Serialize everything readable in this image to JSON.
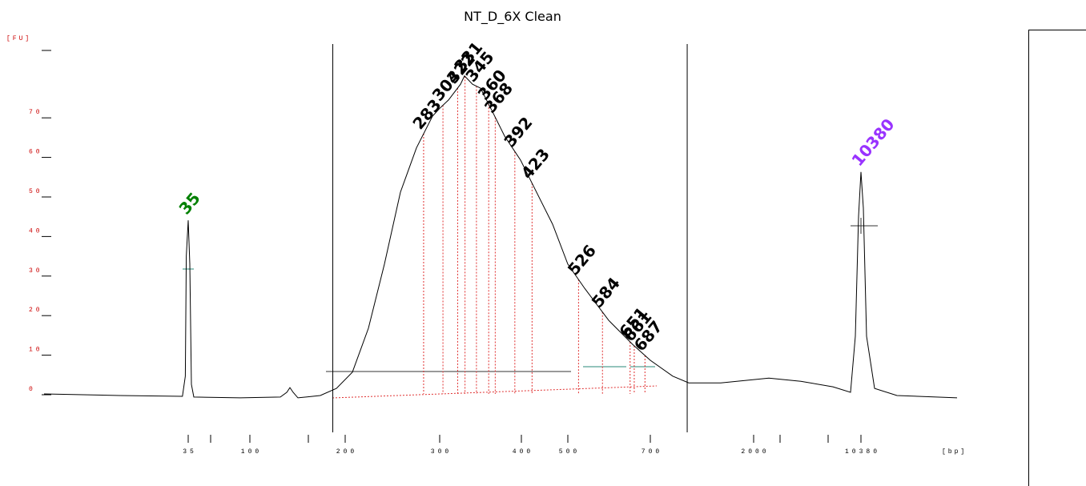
{
  "chart_data": {
    "type": "line",
    "title": "NT_D_6X Clean",
    "x_label": "[bp]",
    "y_label": "[FU]",
    "xlim": [
      20,
      14000
    ],
    "xticks": [
      35,
      100,
      200,
      300,
      400,
      500,
      700,
      2000,
      10380
    ],
    "ylim": [
      -5,
      87
    ],
    "yticks": [
      0,
      10,
      20,
      30,
      40,
      50,
      60,
      70
    ],
    "color": "#000000",
    "tick_color": "#cc0000",
    "x": [
      20,
      27.9,
      34.4,
      34.7,
      34.8,
      35,
      36.7,
      38.4,
      40.9,
      89.9,
      131.9,
      138.7,
      142,
      145.4,
      150.4,
      173.9,
      190.8,
      207.6,
      224.6,
      241.5,
      258.5,
      275.4,
      292.4,
      300,
      310.8,
      325.5,
      330.4,
      340.2,
      350,
      364.7,
      379.4,
      399,
      424.1,
      467.2,
      500,
      540.8,
      599,
      657.3,
      700,
      982.2,
      1183.7,
      1586.8,
      3188,
      5689,
      8190,
      9566,
      9941,
      10192,
      10380,
      10470,
      10591,
      10893,
      11738,
      14000
    ],
    "values": [
      -0.2,
      -0.6,
      -0.8,
      4.3,
      34.6,
      43.7,
      32.6,
      2.2,
      -1,
      -1.2,
      -1,
      0.2,
      1.4,
      0.2,
      -1.2,
      -0.6,
      1.2,
      5.3,
      16.4,
      32.6,
      50.8,
      62,
      70,
      72,
      74.1,
      78.1,
      80.2,
      78.1,
      77.1,
      71.1,
      65,
      58.9,
      52.8,
      42.7,
      32.6,
      26.5,
      18.4,
      12.3,
      8.3,
      4.3,
      2.6,
      2.6,
      3.8,
      3,
      1.6,
      0.2,
      14.4,
      44.7,
      55.9,
      46.8,
      14.4,
      1.2,
      -0.6,
      -1.2
    ],
    "region": [
      187,
      1164
    ],
    "peaks": [
      283,
      304,
      322,
      331,
      345,
      360,
      368,
      392,
      423,
      526,
      584,
      651,
      661,
      687
    ],
    "peak_color": "#000000",
    "markers": [
      {
        "bp": 35,
        "color": "#008000"
      },
      {
        "bp": 10380,
        "color": "#9933ff"
      }
    ]
  }
}
